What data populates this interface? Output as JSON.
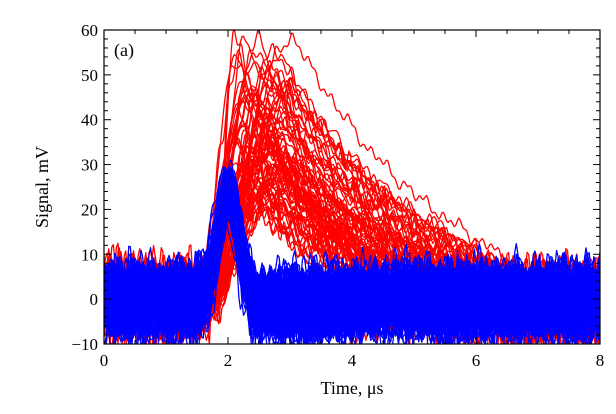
{
  "chart_data": {
    "type": "line",
    "panel_label": "(a)",
    "xlabel": "Time, μs",
    "ylabel": "Signal, mV",
    "xlim": [
      0,
      8
    ],
    "ylim": [
      -10,
      60
    ],
    "x_ticks": [
      0,
      2,
      4,
      6,
      8
    ],
    "y_ticks": [
      -10,
      0,
      10,
      20,
      30,
      40,
      50,
      60
    ],
    "grid": false,
    "series": [
      {
        "color": "#ff0000",
        "count": 80,
        "description_points": {
          "rise_start_time_range": [
            1.3,
            1.95
          ],
          "peak_time_range": [
            2.05,
            3.1
          ],
          "peak_amplitude_range": [
            22,
            60
          ],
          "decay_end_time_range": [
            4.5,
            7.5
          ],
          "baseline_noise_mV": 5
        }
      },
      {
        "color": "#0000ff",
        "count": 120,
        "description_points": {
          "peak_time": 2.0,
          "peak_amplitude_range": [
            19,
            29
          ],
          "pulse_width_us": 0.55,
          "baseline_noise_mV": 5
        }
      }
    ]
  }
}
